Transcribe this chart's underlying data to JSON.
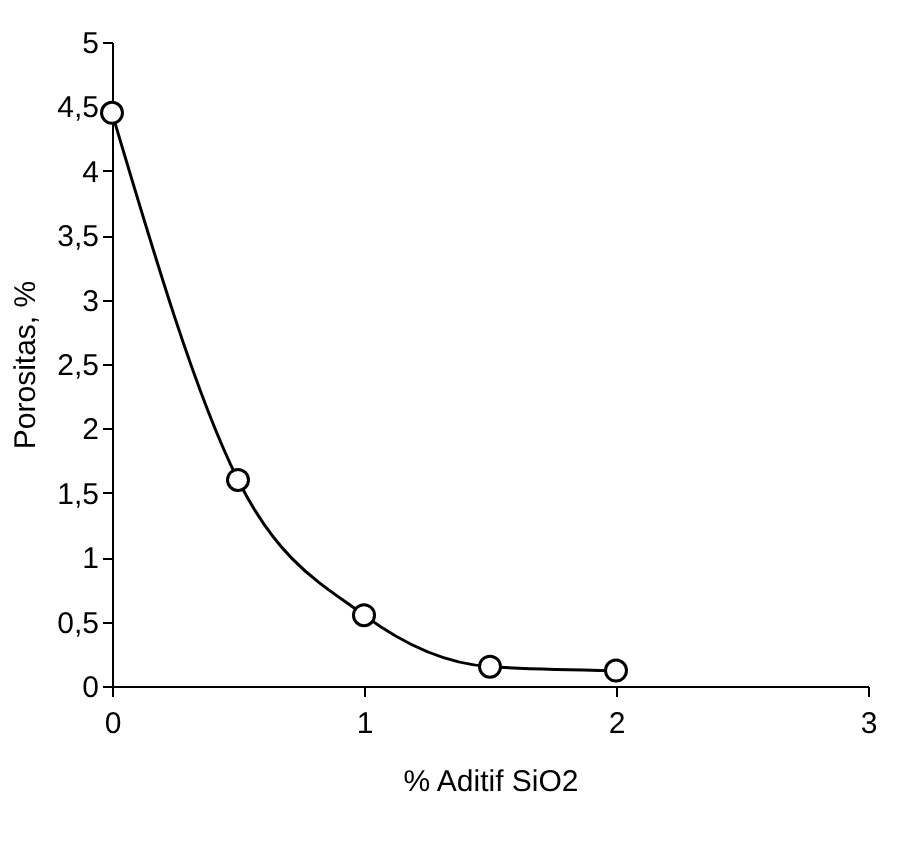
{
  "chart_data": {
    "type": "line",
    "xlabel": "% Aditif SiO2",
    "ylabel": "Porositas, %",
    "x": [
      0,
      0.5,
      1,
      1.5,
      2
    ],
    "series": [
      {
        "color": "#000000",
        "values": [
          4.45,
          1.6,
          0.55,
          0.15,
          0.12
        ]
      }
    ],
    "xlim": [
      0,
      3
    ],
    "xticks": [
      0,
      1,
      2,
      3
    ],
    "ylim": [
      0,
      5
    ],
    "yticks": [
      0,
      {
        "value": 0.5,
        "label": "0,5"
      },
      1,
      {
        "value": 1.5,
        "label": "1,5"
      },
      2,
      {
        "value": 2.5,
        "label": "2,5"
      },
      3,
      {
        "value": 3.5,
        "label": "3,5"
      },
      4,
      {
        "value": 4.5,
        "label": "4,5"
      },
      5
    ],
    "grid": false,
    "marker": "circle",
    "line_style": "solid"
  }
}
